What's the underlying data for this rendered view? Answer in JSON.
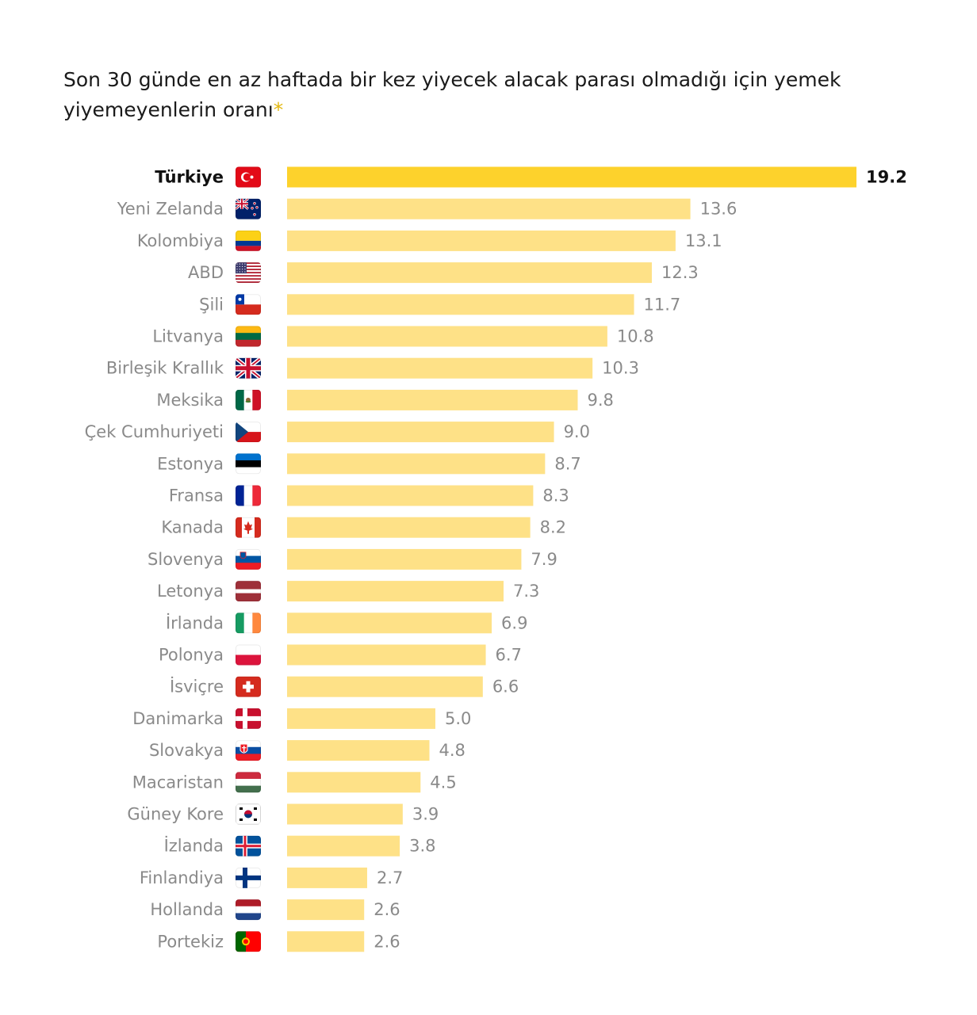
{
  "title": {
    "text": "Son 30 günde en az haftada bir kez yiyecek alacak parası olmadığı için yemek yiyemeyenlerin oranı",
    "asterisk": "*"
  },
  "chart_data": {
    "type": "bar",
    "orientation": "horizontal",
    "xlim": [
      0,
      19.2
    ],
    "highlight_color": "#fdd22c",
    "bar_color": "#fee187",
    "categories": [
      "Türkiye",
      "Yeni Zelanda",
      "Kolombiya",
      "ABD",
      "Şili",
      "Litvanya",
      "Birleşik Krallık",
      "Meksika",
      "Çek Cumhuriyeti",
      "Estonya",
      "Fransa",
      "Kanada",
      "Slovenya",
      "Letonya",
      "İrlanda",
      "Polonya",
      "İsviçre",
      "Danimarka",
      "Slovakya",
      "Macaristan",
      "Güney Kore",
      "İzlanda",
      "Finlandiya",
      "Hollanda",
      "Portekiz"
    ],
    "values": [
      19.2,
      13.6,
      13.1,
      12.3,
      11.7,
      10.8,
      10.3,
      9.8,
      9.0,
      8.7,
      8.3,
      8.2,
      7.9,
      7.3,
      6.9,
      6.7,
      6.6,
      5.0,
      4.8,
      4.5,
      3.9,
      3.8,
      2.7,
      2.6,
      2.6
    ],
    "value_labels": [
      "19.2",
      "13.6",
      "13.1",
      "12.3",
      "11.7",
      "10.8",
      "10.3",
      "9.8",
      "9.0",
      "8.7",
      "8.3",
      "8.2",
      "7.9",
      "7.3",
      "6.9",
      "6.7",
      "6.6",
      "5.0",
      "4.8",
      "4.5",
      "3.9",
      "3.8",
      "2.7",
      "2.6",
      "2.6"
    ],
    "highlight": "Türkiye",
    "flags": [
      "turkey-flag-icon",
      "new-zealand-flag-icon",
      "colombia-flag-icon",
      "usa-flag-icon",
      "chile-flag-icon",
      "lithuania-flag-icon",
      "uk-flag-icon",
      "mexico-flag-icon",
      "czech-flag-icon",
      "estonia-flag-icon",
      "france-flag-icon",
      "canada-flag-icon",
      "slovenia-flag-icon",
      "latvia-flag-icon",
      "ireland-flag-icon",
      "poland-flag-icon",
      "switzerland-flag-icon",
      "denmark-flag-icon",
      "slovakia-flag-icon",
      "hungary-flag-icon",
      "south-korea-flag-icon",
      "iceland-flag-icon",
      "finland-flag-icon",
      "netherlands-flag-icon",
      "portugal-flag-icon"
    ]
  }
}
